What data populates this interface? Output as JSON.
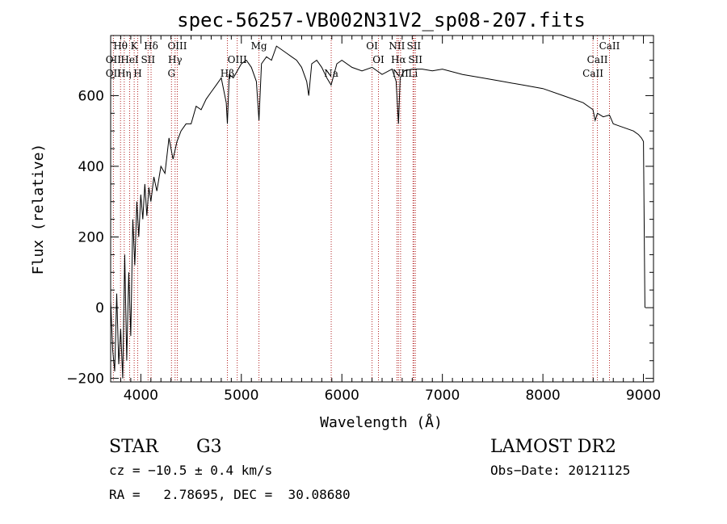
{
  "chart_data": {
    "type": "line",
    "title": "spec-56257-VB002N31V2_sp08-207.fits",
    "xlabel": "Wavelength (Å)",
    "ylabel": "Flux (relative)",
    "xlim": [
      3700,
      9100
    ],
    "ylim": [
      -210,
      770
    ],
    "x_ticks": [
      4000,
      5000,
      6000,
      7000,
      8000,
      9000
    ],
    "x_tick_labels": [
      "4000",
      "5000",
      "6000",
      "7000",
      "8000",
      "9000"
    ],
    "y_ticks": [
      -200,
      0,
      200,
      400,
      600
    ],
    "y_tick_labels": [
      "−200",
      "0",
      "200",
      "400",
      "600"
    ],
    "grid": false,
    "series": [
      {
        "color": "#000000",
        "x": [
          3700,
          3720,
          3740,
          3760,
          3780,
          3800,
          3820,
          3840,
          3860,
          3880,
          3900,
          3920,
          3940,
          3960,
          3980,
          4000,
          4020,
          4040,
          4060,
          4080,
          4100,
          4130,
          4160,
          4200,
          4240,
          4280,
          4320,
          4360,
          4400,
          4450,
          4500,
          4550,
          4600,
          4650,
          4700,
          4750,
          4800,
          4850,
          4861,
          4880,
          4920,
          4960,
          5000,
          5050,
          5100,
          5150,
          5175,
          5200,
          5250,
          5300,
          5350,
          5400,
          5450,
          5500,
          5550,
          5600,
          5650,
          5670,
          5700,
          5750,
          5800,
          5850,
          5893,
          5950,
          6000,
          6100,
          6200,
          6300,
          6400,
          6500,
          6540,
          6563,
          6580,
          6620,
          6700,
          6800,
          6900,
          7000,
          7200,
          7400,
          7600,
          7800,
          8000,
          8200,
          8400,
          8498,
          8520,
          8542,
          8600,
          8662,
          8700,
          8800,
          8900,
          8950,
          8980,
          9000,
          9010,
          9015
        ],
        "y": [
          20,
          -120,
          -180,
          40,
          -160,
          -60,
          -200,
          150,
          -150,
          100,
          -80,
          250,
          120,
          300,
          200,
          320,
          250,
          350,
          260,
          340,
          300,
          370,
          330,
          400,
          380,
          480,
          420,
          470,
          500,
          520,
          520,
          570,
          560,
          590,
          610,
          630,
          650,
          580,
          520,
          660,
          650,
          670,
          690,
          700,
          680,
          640,
          530,
          690,
          710,
          700,
          740,
          730,
          720,
          710,
          700,
          680,
          640,
          600,
          690,
          700,
          680,
          650,
          630,
          690,
          700,
          680,
          670,
          680,
          660,
          675,
          640,
          520,
          650,
          670,
          675,
          675,
          670,
          675,
          660,
          650,
          640,
          630,
          620,
          600,
          580,
          560,
          530,
          550,
          540,
          545,
          520,
          510,
          500,
          490,
          480,
          470,
          150,
          0
        ]
      }
    ],
    "line_markers": [
      {
        "label": "Hθ",
        "x": 3798,
        "row": 1
      },
      {
        "label": "OII",
        "x": 3727,
        "row": 2
      },
      {
        "label": "OII",
        "x": 3727,
        "row": 3
      },
      {
        "label": "Hη",
        "x": 3835,
        "row": 3
      },
      {
        "label": "HeI",
        "x": 3889,
        "row": 2
      },
      {
        "label": "K",
        "x": 3934,
        "row": 1
      },
      {
        "label": "SII",
        "x": 4072,
        "row": 2
      },
      {
        "label": "H",
        "x": 3969,
        "row": 3
      },
      {
        "label": "Hδ",
        "x": 4102,
        "row": 1
      },
      {
        "label": "OIII",
        "x": 4363,
        "row": 1
      },
      {
        "label": "Hγ",
        "x": 4341,
        "row": 2
      },
      {
        "label": "G",
        "x": 4305,
        "row": 3
      },
      {
        "label": "Hβ",
        "x": 4861,
        "row": 3
      },
      {
        "label": "OIII",
        "x": 4959,
        "row": 2
      },
      {
        "label": "Mg",
        "x": 5175,
        "row": 1
      },
      {
        "label": "Na",
        "x": 5894,
        "row": 3
      },
      {
        "label": "OI",
        "x": 6300,
        "row": 1
      },
      {
        "label": "OI",
        "x": 6364,
        "row": 2
      },
      {
        "label": "NII",
        "x": 6548,
        "row": 1
      },
      {
        "label": "SII",
        "x": 6716,
        "row": 1
      },
      {
        "label": "Hα",
        "x": 6563,
        "row": 2
      },
      {
        "label": "SII",
        "x": 6731,
        "row": 2
      },
      {
        "label": "NII",
        "x": 6584,
        "row": 3
      },
      {
        "label": "Li",
        "x": 6708,
        "row": 3
      },
      {
        "label": "CaII",
        "x": 8662,
        "row": 1
      },
      {
        "label": "CaII",
        "x": 8542,
        "row": 2
      },
      {
        "label": "CaII",
        "x": 8498,
        "row": 3
      }
    ],
    "marker_lines_x": [
      3727,
      3798,
      3835,
      3889,
      3934,
      3969,
      4072,
      4102,
      4305,
      4341,
      4363,
      4861,
      4959,
      5175,
      5894,
      6300,
      6364,
      6548,
      6563,
      6584,
      6708,
      6716,
      6731,
      8498,
      8542,
      8662
    ],
    "marker_color": "#b22222"
  },
  "info": {
    "object_class": "STAR",
    "subclass": "G3",
    "survey": "LAMOST DR2",
    "redshift": "cz = −10.5 ± 0.4 km/s",
    "obs_date": "Obs−Date: 20121125",
    "coords": "RA =   2.78695, DEC =  30.08680"
  }
}
